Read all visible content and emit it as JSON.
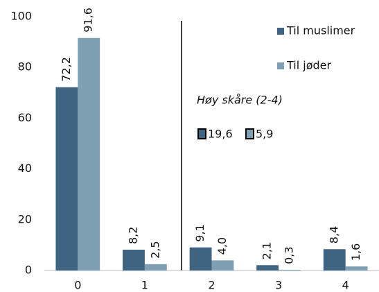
{
  "chart_data": {
    "type": "bar",
    "categories": [
      "0",
      "1",
      "2",
      "3",
      "4"
    ],
    "series": [
      {
        "name": "Til muslimer",
        "color": "#3f6482",
        "values": [
          72.2,
          8.2,
          9.1,
          2.1,
          8.4
        ],
        "value_labels": [
          "72,2",
          "8,2",
          "9,1",
          "2,1",
          "8,4"
        ]
      },
      {
        "name": "Til jøder",
        "color": "#7f9fb2",
        "values": [
          91.6,
          2.5,
          4.0,
          0.3,
          1.6
        ],
        "value_labels": [
          "91,6",
          "2,5",
          "4,0",
          "0,3",
          "1,6"
        ]
      }
    ],
    "ylim": [
      0,
      100
    ],
    "yticks": [
      0,
      20,
      40,
      60,
      80,
      100
    ],
    "grid": false,
    "legend": "top-right",
    "annotation": "Høy skåre (2-4)",
    "summary": [
      {
        "value": 19.6,
        "label": "19,6"
      },
      {
        "value": 5.9,
        "label": "5,9"
      }
    ]
  }
}
